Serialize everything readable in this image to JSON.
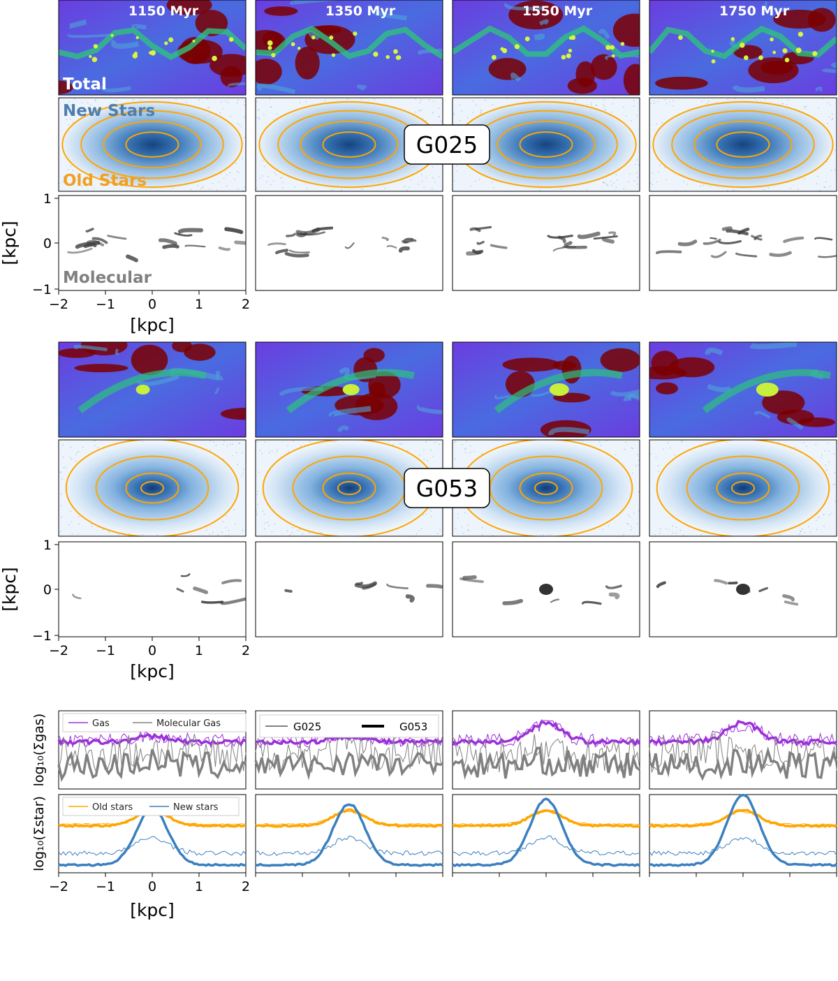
{
  "figure": {
    "time_labels": [
      "1150 Myr",
      "1350 Myr",
      "1550 Myr",
      "1750 Myr"
    ],
    "galaxies": [
      "G025",
      "G053"
    ],
    "panel_tags": {
      "total": "Total",
      "new_stars": "New Stars",
      "old_stars": "Old Stars",
      "molecular": "Molecular"
    },
    "x_axis_label": "[kpc]",
    "y_axis_label": "[kpc]",
    "x_ticks": [
      "−2",
      "−1",
      "0",
      "1",
      "2"
    ],
    "y_ticks": [
      "1",
      "0",
      "−1"
    ],
    "profile_ylabel_gas": "log₁₀(Σgas)",
    "profile_ylabel_star": "log₁₀(Σstar)",
    "legend_gas": [
      "Gas",
      "Molecular Gas"
    ],
    "legend_gal": [
      "G025",
      "G053"
    ],
    "legend_star": [
      "Old stars",
      "New stars"
    ]
  },
  "colors": {
    "gas": "#9b30d9",
    "molecular": "#808080",
    "old_stars": "#ffa500",
    "new_stars": "#3b7fbf",
    "total_bg_low": "#7a0000",
    "total_mid": "#5a4fe0",
    "total_high": "#2ec27e"
  },
  "chart_data": [
    {
      "type": "line",
      "title": "",
      "panel": "gas surface density profiles",
      "xlabel": "[kpc]",
      "ylabel": "log10(Σgas)",
      "xlim": [
        -2,
        2
      ],
      "x": [
        -2.0,
        -1.5,
        -1.0,
        -0.5,
        0.0,
        0.5,
        1.0,
        1.5,
        2.0
      ],
      "series": [
        {
          "name": "Gas",
          "galaxy": "G025",
          "time": "1150 Myr",
          "values": [
            0.55,
            0.6,
            0.65,
            0.7,
            0.7,
            0.68,
            0.62,
            0.6,
            0.5
          ]
        },
        {
          "name": "Gas",
          "galaxy": "G053",
          "time": "1150 Myr",
          "values": [
            0.52,
            0.57,
            0.62,
            0.66,
            0.65,
            0.64,
            0.6,
            0.6,
            0.55
          ]
        },
        {
          "name": "Molecular Gas",
          "galaxy": "G025",
          "time": "1150 Myr",
          "values": [
            0.2,
            0.4,
            0.5,
            0.55,
            0.6,
            0.5,
            0.45,
            0.5,
            0.4
          ]
        },
        {
          "name": "Molecular Gas",
          "galaxy": "G053",
          "time": "1150 Myr",
          "values": [
            0.15,
            0.35,
            0.45,
            0.5,
            0.55,
            0.5,
            0.5,
            0.55,
            0.45
          ]
        },
        {
          "name": "Gas",
          "galaxy": "G053",
          "time": "1550 Myr",
          "values": [
            0.52,
            0.52,
            0.53,
            0.52,
            0.82,
            0.5,
            0.48,
            0.52,
            0.6
          ]
        },
        {
          "name": "Gas",
          "galaxy": "G053",
          "time": "1750 Myr",
          "values": [
            0.48,
            0.48,
            0.5,
            0.5,
            0.75,
            0.52,
            0.52,
            0.5,
            0.5
          ]
        }
      ]
    },
    {
      "type": "line",
      "title": "",
      "panel": "stellar surface density profiles",
      "xlabel": "[kpc]",
      "ylabel": "log10(Σstar)",
      "xlim": [
        -2,
        2
      ],
      "x": [
        -2.0,
        -1.5,
        -1.0,
        -0.5,
        0.0,
        0.5,
        1.0,
        1.5,
        2.0
      ],
      "series": [
        {
          "name": "Old stars",
          "galaxy": "G053",
          "time": "1150 Myr",
          "values": [
            0.62,
            0.66,
            0.72,
            0.78,
            0.8,
            0.76,
            0.72,
            0.68,
            0.62
          ]
        },
        {
          "name": "New stars",
          "galaxy": "G053",
          "time": "1150 Myr",
          "values": [
            0.08,
            0.12,
            0.2,
            0.45,
            0.75,
            0.5,
            0.2,
            0.1,
            0.05
          ]
        },
        {
          "name": "New stars",
          "galaxy": "G025",
          "time": "1150 Myr",
          "values": [
            0.2,
            0.3,
            0.38,
            0.4,
            0.42,
            0.4,
            0.35,
            0.28,
            0.2
          ]
        },
        {
          "name": "New stars",
          "galaxy": "G053",
          "time": "1750 Myr",
          "values": [
            0.12,
            0.15,
            0.2,
            0.4,
            0.95,
            0.4,
            0.22,
            0.15,
            0.08
          ]
        }
      ]
    }
  ]
}
